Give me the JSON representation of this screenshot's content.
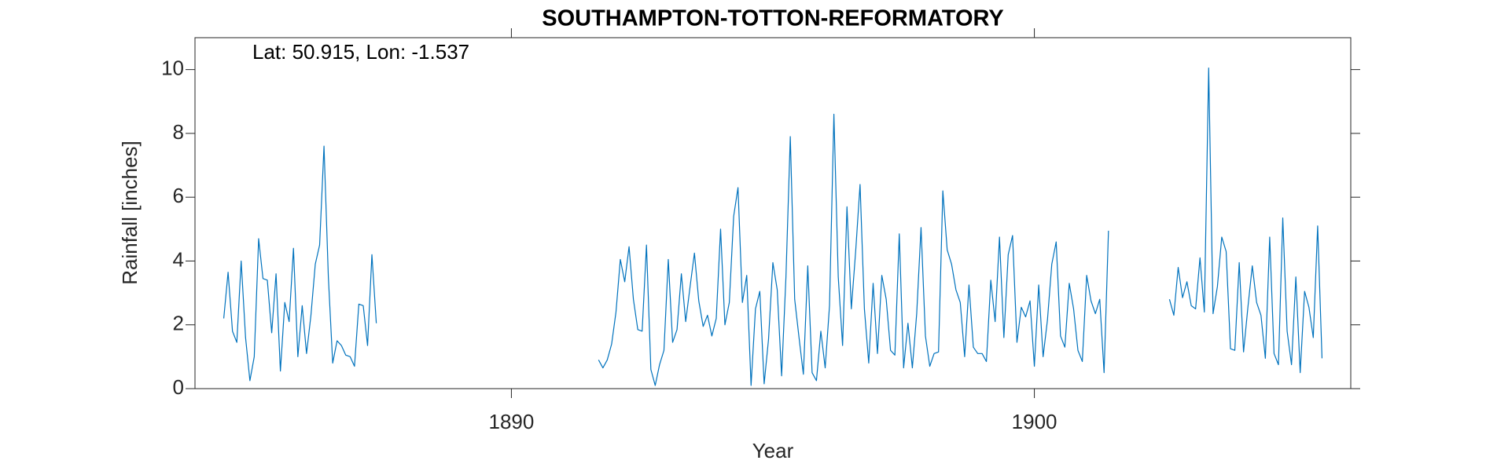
{
  "chart_data": {
    "type": "line",
    "title": "SOUTHAMPTON-TOTTON-REFORMATORY",
    "annotation": "Lat: 50.915, Lon: -1.537",
    "x_label": "Year",
    "y_label": "Rainfall [inches]",
    "xlim": [
      1883.95,
      1906.05
    ],
    "ylim": [
      0,
      11
    ],
    "xticks": [
      1890,
      1900
    ],
    "yticks": [
      0,
      2,
      4,
      6,
      8,
      10
    ],
    "grid": false,
    "x": [
      1884.5,
      1884.583,
      1884.667,
      1884.75,
      1884.833,
      1884.917,
      1885.0,
      1885.083,
      1885.167,
      1885.25,
      1885.333,
      1885.417,
      1885.5,
      1885.583,
      1885.667,
      1885.75,
      1885.833,
      1885.917,
      1886.0,
      1886.083,
      1886.167,
      1886.25,
      1886.333,
      1886.417,
      1886.5,
      1886.583,
      1886.667,
      1886.75,
      1886.833,
      1886.917,
      1887.0,
      1887.083,
      1887.167,
      1887.25,
      1887.333,
      1887.417,
      null,
      1891.667,
      1891.75,
      1891.833,
      1891.917,
      1892.0,
      1892.083,
      1892.167,
      1892.25,
      1892.333,
      1892.417,
      1892.5,
      1892.583,
      1892.667,
      1892.75,
      1892.833,
      1892.917,
      1893.0,
      1893.083,
      1893.167,
      1893.25,
      1893.333,
      1893.417,
      1893.5,
      1893.583,
      1893.667,
      1893.75,
      1893.833,
      1893.917,
      1894.0,
      1894.083,
      1894.167,
      1894.25,
      1894.333,
      1894.417,
      1894.5,
      1894.583,
      1894.667,
      1894.75,
      1894.833,
      1894.917,
      1895.0,
      1895.083,
      1895.167,
      1895.25,
      1895.333,
      1895.417,
      1895.5,
      1895.583,
      1895.667,
      1895.75,
      1895.833,
      1895.917,
      1896.0,
      1896.083,
      1896.167,
      1896.25,
      1896.333,
      1896.417,
      1896.5,
      1896.583,
      1896.667,
      1896.75,
      1896.833,
      1896.917,
      1897.0,
      1897.083,
      1897.167,
      1897.25,
      1897.333,
      1897.417,
      1897.5,
      1897.583,
      1897.667,
      1897.75,
      1897.833,
      1897.917,
      1898.0,
      1898.083,
      1898.167,
      1898.25,
      1898.333,
      1898.417,
      1898.5,
      1898.583,
      1898.667,
      1898.75,
      1898.833,
      1898.917,
      1899.0,
      1899.083,
      1899.167,
      1899.25,
      1899.333,
      1899.417,
      1899.5,
      1899.583,
      1899.667,
      1899.75,
      1899.833,
      1899.917,
      1900.0,
      1900.083,
      1900.167,
      1900.25,
      1900.333,
      1900.417,
      1900.5,
      1900.583,
      1900.667,
      1900.75,
      1900.833,
      1900.917,
      1901.0,
      1901.083,
      1901.167,
      1901.25,
      1901.333,
      1901.417,
      null,
      1902.583,
      1902.667,
      1902.75,
      1902.833,
      1902.917,
      1903.0,
      1903.083,
      1903.167,
      1903.25,
      1903.333,
      1903.417,
      1903.5,
      1903.583,
      1903.667,
      1903.75,
      1903.833,
      1903.917,
      1904.0,
      1904.083,
      1904.167,
      1904.25,
      1904.333,
      1904.417,
      1904.5,
      1904.583,
      1904.667,
      1904.75,
      1904.833,
      1904.917,
      1905.0,
      1905.083,
      1905.167,
      1905.25,
      1905.333,
      1905.417,
      1905.5
    ],
    "series": [
      {
        "color": "#0072bd",
        "values": [
          2.2,
          3.65,
          1.8,
          1.45,
          4.0,
          1.6,
          0.25,
          1.0,
          4.7,
          3.45,
          3.4,
          1.75,
          3.6,
          0.55,
          2.7,
          2.1,
          4.4,
          1.0,
          2.6,
          1.1,
          2.3,
          3.9,
          4.5,
          7.6,
          3.5,
          0.8,
          1.5,
          1.35,
          1.05,
          1.0,
          0.7,
          2.65,
          2.6,
          1.35,
          4.2,
          2.05,
          null,
          0.9,
          0.65,
          0.9,
          1.4,
          2.4,
          4.05,
          3.35,
          4.45,
          2.8,
          1.85,
          1.8,
          4.5,
          0.6,
          0.1,
          0.75,
          1.2,
          4.05,
          1.45,
          1.85,
          3.6,
          2.1,
          3.2,
          4.25,
          2.75,
          1.95,
          2.3,
          1.65,
          2.2,
          5.0,
          2.0,
          2.7,
          5.4,
          6.3,
          2.7,
          3.55,
          0.1,
          2.5,
          3.05,
          0.15,
          1.55,
          3.95,
          3.1,
          0.4,
          3.5,
          7.9,
          2.8,
          1.6,
          0.45,
          3.85,
          0.5,
          0.25,
          1.8,
          0.65,
          2.6,
          8.6,
          3.5,
          1.35,
          5.7,
          2.5,
          4.3,
          6.4,
          2.5,
          0.8,
          3.3,
          1.1,
          3.55,
          2.8,
          1.2,
          1.05,
          4.85,
          0.65,
          2.05,
          0.65,
          2.35,
          5.05,
          1.65,
          0.7,
          1.1,
          1.15,
          6.2,
          4.35,
          3.9,
          3.1,
          2.7,
          1.0,
          3.25,
          1.3,
          1.1,
          1.1,
          0.85,
          3.4,
          2.1,
          4.75,
          1.6,
          4.2,
          4.8,
          1.45,
          2.55,
          2.25,
          2.75,
          0.7,
          3.25,
          1.0,
          2.15,
          3.9,
          4.6,
          1.65,
          1.3,
          3.3,
          2.5,
          1.2,
          0.85,
          3.55,
          2.75,
          2.35,
          2.8,
          0.5,
          4.95,
          null,
          2.8,
          2.3,
          3.8,
          2.85,
          3.35,
          2.6,
          2.5,
          4.1,
          2.4,
          10.05,
          2.35,
          3.2,
          4.75,
          4.3,
          1.25,
          1.2,
          3.95,
          1.15,
          2.55,
          3.85,
          2.7,
          2.3,
          0.95,
          4.75,
          1.1,
          0.75,
          5.35,
          1.8,
          0.75,
          3.5,
          0.5,
          3.05,
          2.55,
          1.6,
          5.1,
          0.95
        ]
      }
    ]
  }
}
